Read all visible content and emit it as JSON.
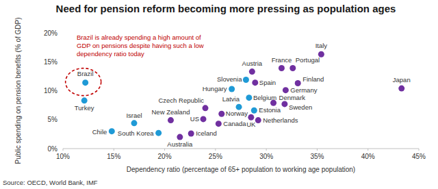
{
  "chart_data": {
    "type": "scatter",
    "title": "Need for pension reform becoming more pressing as population ages",
    "x_label": "Dependency ratio (percentage of 65+ population to working age population)",
    "y_label": "Public spending on pension benefits (% of GDP)",
    "annotation": [
      "Brazil is already spending a high amount of",
      "GDP on pensions despite having such a low",
      "dependency ratio today"
    ],
    "source": "Source: OECD, World Bank, IMF",
    "labels": [
      "Brazil",
      "Turkey",
      "Chile",
      "Israel",
      "South Korea",
      "New Zealand",
      "Australia",
      "Iceland",
      "US",
      "Czech Republic",
      "Canada",
      "Norway",
      "Latvia",
      "UK",
      "Netherlands",
      "Estonia",
      "Belgium",
      "Hungary",
      "Slovenia",
      "Austria",
      "Spain",
      "France",
      "Portugal",
      "Italy",
      "Finland",
      "Germany",
      "Denmark",
      "Sweden",
      "Japan"
    ],
    "x": [
      12.2,
      12.1,
      14.8,
      17.0,
      19.4,
      20.6,
      21.5,
      22.6,
      23.8,
      24.0,
      25.3,
      25.6,
      27.3,
      28.5,
      29.2,
      28.8,
      28.3,
      26.6,
      28.0,
      28.6,
      28.9,
      31.5,
      32.6,
      35.4,
      33.1,
      31.9,
      30.7,
      31.8,
      43.3
    ],
    "values": [
      11.4,
      8.3,
      3.0,
      4.4,
      2.7,
      4.9,
      2.0,
      2.6,
      5.1,
      7.0,
      4.3,
      6.0,
      7.2,
      5.4,
      4.9,
      6.6,
      8.8,
      10.3,
      11.9,
      13.3,
      11.4,
      13.9,
      13.9,
      16.3,
      11.3,
      10.1,
      7.9,
      7.7,
      10.4
    ],
    "colors": [
      "#1f9ad6",
      "#1f9ad6",
      "#1f9ad6",
      "#1f9ad6",
      "#1f9ad6",
      "#7030a0",
      "#7030a0",
      "#7030a0",
      "#7030a0",
      "#7030a0",
      "#7030a0",
      "#7030a0",
      "#1f9ad6",
      "#7030a0",
      "#7030a0",
      "#1f9ad6",
      "#1f9ad6",
      "#1f9ad6",
      "#1f9ad6",
      "#7030a0",
      "#7030a0",
      "#7030a0",
      "#7030a0",
      "#7030a0",
      "#7030a0",
      "#7030a0",
      "#7030a0",
      "#7030a0",
      "#7030a0"
    ],
    "xlim": [
      10,
      45
    ],
    "xticks": [
      {
        "value": 10,
        "label": "10%"
      },
      {
        "value": 15,
        "label": "15%"
      },
      {
        "value": 20,
        "label": "20%"
      },
      {
        "value": 25,
        "label": "25%"
      },
      {
        "value": 30,
        "label": "30%"
      },
      {
        "value": 35,
        "label": "35%"
      },
      {
        "value": 40,
        "label": "40%"
      },
      {
        "value": 45,
        "label": "45%"
      }
    ],
    "ylim": [
      0,
      20
    ],
    "yticks": [
      {
        "value": 0,
        "label": "0%"
      },
      {
        "value": 5,
        "label": "5%"
      },
      {
        "value": 10,
        "label": "10%"
      },
      {
        "value": 15,
        "label": "15%"
      },
      {
        "value": 20,
        "label": "20%"
      }
    ],
    "grid": false
  }
}
